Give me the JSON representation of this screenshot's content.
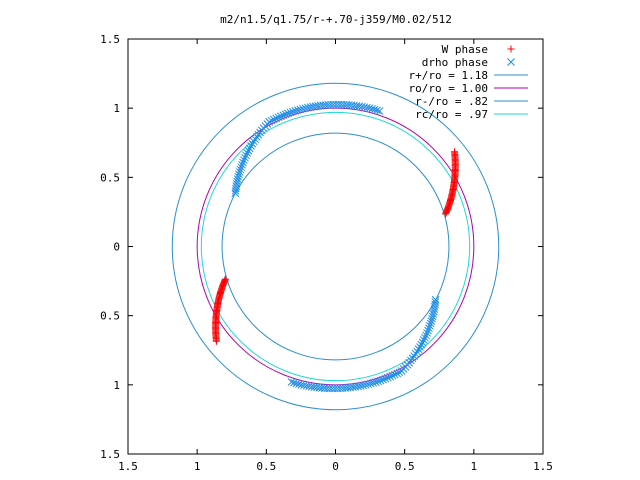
{
  "chart_data": {
    "type": "scatter",
    "title": "m2/n1.5/q1.75/r-+.70-j359/M0.02/512",
    "xlim": [
      -1.5,
      1.5
    ],
    "ylim": [
      -1.5,
      1.5
    ],
    "x_ticks": [
      {
        "value": -1.5,
        "label": "1.5"
      },
      {
        "value": -1.0,
        "label": "1"
      },
      {
        "value": -0.5,
        "label": "0.5"
      },
      {
        "value": 0.0,
        "label": "0"
      },
      {
        "value": 0.5,
        "label": "0.5"
      },
      {
        "value": 1.0,
        "label": "1"
      },
      {
        "value": 1.5,
        "label": "1.5"
      }
    ],
    "y_ticks": [
      {
        "value": 1.5,
        "label": "1.5"
      },
      {
        "value": 1.0,
        "label": "1"
      },
      {
        "value": 0.5,
        "label": "0.5"
      },
      {
        "value": 0.0,
        "label": "0"
      },
      {
        "value": -0.5,
        "label": "0.5"
      },
      {
        "value": -1.0,
        "label": "1"
      },
      {
        "value": -1.5,
        "label": "1.5"
      }
    ],
    "legend_position": "top-right",
    "grid": false,
    "circles": [
      {
        "name": "r+/ro = 1.18",
        "radius": 1.18,
        "color": "#2a8fd0"
      },
      {
        "name": "ro/ro = 1.00",
        "radius": 1.0,
        "color": "#b000b0"
      },
      {
        "name": "r-/ro = .82",
        "radius": 0.82,
        "color": "#2a8fd0"
      },
      {
        "name": "rc/ro = .97",
        "radius": 0.97,
        "color": "#20d8d8"
      }
    ],
    "point_series": [
      {
        "name": "W phase",
        "marker": "+",
        "color": "#ff0000",
        "arcs": [
          {
            "r_start": 0.83,
            "r_end": 1.1,
            "ang_start": 16.5,
            "ang_end": 38.5,
            "points": 55
          },
          {
            "r_start": 0.83,
            "r_end": 1.1,
            "ang_start": 196.5,
            "ang_end": 218.5,
            "points": 55
          }
        ]
      },
      {
        "name": "drho phase",
        "marker": "x",
        "color": "#1f8fe8",
        "arcs": [
          {
            "r_start": 0.82,
            "r_end": 1.02,
            "ang_start": 152,
            "ang_end": 118,
            "points": 32
          },
          {
            "r_start": 1.02,
            "r_end": 1.03,
            "ang_start": 118,
            "ang_end": 72,
            "points": 45
          },
          {
            "r_start": 0.82,
            "r_end": 1.02,
            "ang_start": 332,
            "ang_end": 298,
            "points": 32
          },
          {
            "r_start": 1.02,
            "r_end": 1.03,
            "ang_start": 298,
            "ang_end": 252,
            "points": 45
          }
        ]
      }
    ],
    "colors": {
      "axis": "#000000",
      "background": "#ffffff"
    }
  }
}
